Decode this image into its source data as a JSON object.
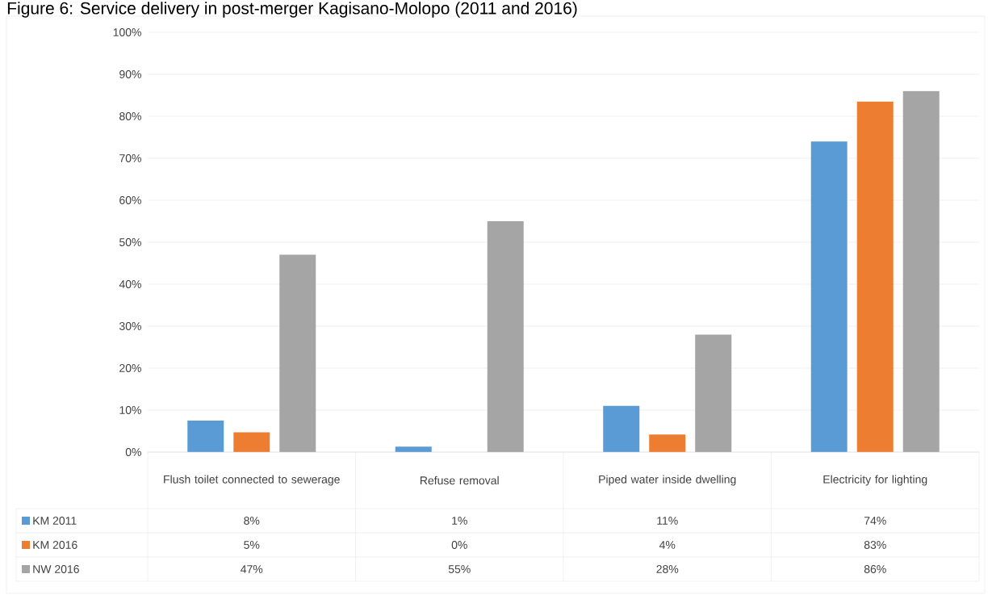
{
  "chart_data": {
    "type": "bar",
    "title": "Figure 6: Service delivery in post-merger Kagisano-Molopo (2011 and 2016)",
    "categories": [
      "Flush toilet connected to sewerage",
      "Refuse removal",
      "Piped water inside dwelling",
      "Electricity for lighting"
    ],
    "series": [
      {
        "name": "KM 2011",
        "color": "#5b9bd5",
        "values": [
          7.5,
          1.3,
          11,
          74
        ],
        "value_labels": [
          "8%",
          "1%",
          "11%",
          "74%"
        ]
      },
      {
        "name": "KM 2016",
        "color": "#ed7d31",
        "values": [
          4.7,
          0,
          4.2,
          83.5
        ],
        "value_labels": [
          "5%",
          "0%",
          "4%",
          "83%"
        ]
      },
      {
        "name": "NW 2016",
        "color": "#a5a5a5",
        "values": [
          47,
          55,
          28,
          86
        ],
        "value_labels": [
          "47%",
          "55%",
          "28%",
          "86%"
        ]
      }
    ],
    "ylim": [
      0,
      100
    ],
    "yticks": [
      {
        "value": 0,
        "label": "0%"
      },
      {
        "value": 10,
        "label": "10%"
      },
      {
        "value": 20,
        "label": "20%"
      },
      {
        "value": 30,
        "label": "30%"
      },
      {
        "value": 40,
        "label": "40%"
      },
      {
        "value": 50,
        "label": "50%"
      },
      {
        "value": 60,
        "label": "60%"
      },
      {
        "value": 70,
        "label": "70%"
      },
      {
        "value": 80,
        "label": "80%"
      },
      {
        "value": 90,
        "label": "90%"
      },
      {
        "value": 100,
        "label": "100%"
      }
    ],
    "grid": "y",
    "legend": "bottom"
  }
}
